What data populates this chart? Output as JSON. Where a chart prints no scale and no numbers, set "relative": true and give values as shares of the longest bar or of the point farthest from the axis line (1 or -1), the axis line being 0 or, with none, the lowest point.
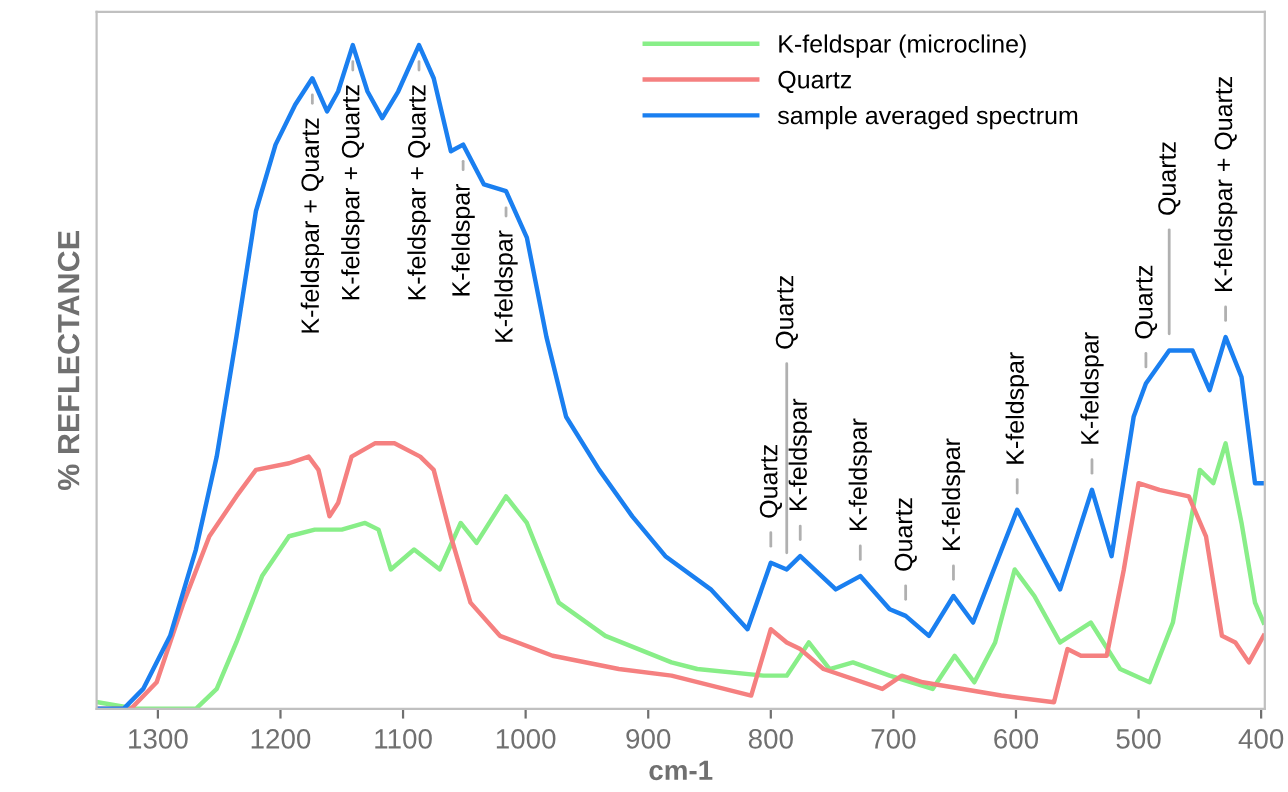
{
  "chart_data": {
    "type": "line",
    "relative": true,
    "xlabel": "cm-1",
    "ylabel": "% REFLECTANCE",
    "xlim": [
      1350,
      397
    ],
    "xticks": [
      1300,
      1200,
      1100,
      1000,
      900,
      800,
      700,
      600,
      500,
      400
    ],
    "grid": false,
    "legend": "top right",
    "marker": "none",
    "line_style": "solid",
    "series": [
      {
        "name": "K-feldspar (microcline)",
        "color": "#88ee88",
        "x": [
          1349,
          1317,
          1269,
          1252,
          1236,
          1215,
          1193,
          1172,
          1150,
          1131,
          1120,
          1110,
          1091,
          1070,
          1053,
          1040,
          1016,
          999,
          973,
          935,
          881,
          860,
          806,
          787,
          769,
          752,
          733,
          703,
          668,
          650,
          634,
          617,
          601,
          585,
          564,
          539,
          515,
          491,
          472,
          450,
          439,
          429,
          416,
          405,
          398
        ],
        "values": [
          0.01,
          0,
          0,
          0.03,
          0.1,
          0.2,
          0.26,
          0.27,
          0.27,
          0.28,
          0.27,
          0.21,
          0.24,
          0.21,
          0.28,
          0.25,
          0.32,
          0.28,
          0.16,
          0.11,
          0.07,
          0.06,
          0.05,
          0.05,
          0.1,
          0.06,
          0.07,
          0.05,
          0.03,
          0.08,
          0.04,
          0.1,
          0.21,
          0.17,
          0.1,
          0.13,
          0.06,
          0.04,
          0.13,
          0.36,
          0.34,
          0.4,
          0.28,
          0.16,
          0.13
        ]
      },
      {
        "name": "Quartz",
        "color": "#f58080",
        "x": [
          1349,
          1322,
          1301,
          1279,
          1258,
          1236,
          1220,
          1193,
          1177,
          1169,
          1160,
          1153,
          1142,
          1123,
          1107,
          1086,
          1075,
          1061,
          1045,
          1021,
          978,
          924,
          881,
          816,
          800,
          787,
          776,
          757,
          709,
          693,
          676,
          612,
          569,
          558,
          547,
          526,
          512,
          500,
          483,
          459,
          445,
          432,
          421,
          410,
          398
        ],
        "values": [
          0,
          0,
          0.04,
          0.16,
          0.26,
          0.32,
          0.36,
          0.37,
          0.38,
          0.36,
          0.29,
          0.31,
          0.38,
          0.4,
          0.4,
          0.38,
          0.36,
          0.26,
          0.16,
          0.11,
          0.08,
          0.06,
          0.05,
          0.02,
          0.12,
          0.1,
          0.09,
          0.06,
          0.03,
          0.05,
          0.04,
          0.02,
          0.01,
          0.09,
          0.08,
          0.08,
          0.21,
          0.34,
          0.33,
          0.32,
          0.26,
          0.11,
          0.1,
          0.07,
          0.11
        ]
      },
      {
        "name": "sample averaged spectrum",
        "color": "#1a7ff0",
        "x": [
          1349,
          1328,
          1312,
          1290,
          1269,
          1252,
          1236,
          1220,
          1204,
          1188,
          1174,
          1162,
          1153,
          1141,
          1129,
          1117,
          1104,
          1087,
          1075,
          1061,
          1051,
          1034,
          1016,
          999,
          983,
          967,
          940,
          913,
          886,
          849,
          819,
          800,
          787,
          776,
          747,
          727,
          703,
          690,
          671,
          651,
          635,
          599,
          564,
          538,
          522,
          504,
          494,
          475,
          456,
          442,
          429,
          416,
          405,
          398
        ],
        "values": [
          0,
          0,
          0.03,
          0.11,
          0.24,
          0.38,
          0.56,
          0.75,
          0.85,
          0.91,
          0.95,
          0.9,
          0.93,
          1.0,
          0.93,
          0.89,
          0.93,
          1.0,
          0.95,
          0.84,
          0.85,
          0.79,
          0.78,
          0.71,
          0.56,
          0.44,
          0.36,
          0.29,
          0.23,
          0.18,
          0.12,
          0.22,
          0.21,
          0.23,
          0.18,
          0.2,
          0.15,
          0.14,
          0.11,
          0.17,
          0.13,
          0.3,
          0.18,
          0.33,
          0.23,
          0.44,
          0.49,
          0.54,
          0.54,
          0.48,
          0.56,
          0.5,
          0.34,
          0.34
        ]
      }
    ],
    "annotations": [
      {
        "text": "K-feldspar + Quartz",
        "x": 1174,
        "y": 0.95
      },
      {
        "text": "K-feldspar + Quartz",
        "x": 1141,
        "y": 1.0
      },
      {
        "text": "K-feldspar + Quartz",
        "x": 1087,
        "y": 1.0
      },
      {
        "text": "K-feldspar",
        "x": 1051,
        "y": 0.85
      },
      {
        "text": "K-feldspar",
        "x": 1016,
        "y": 0.78
      },
      {
        "text": "Quartz",
        "x": 800,
        "y": 0.22
      },
      {
        "text": "K-feldspar",
        "x": 776,
        "y": 0.23
      },
      {
        "text": "Quartz",
        "x": 787,
        "y": 0.21
      },
      {
        "text": "K-feldspar",
        "x": 727,
        "y": 0.2
      },
      {
        "text": "Quartz",
        "x": 690,
        "y": 0.14
      },
      {
        "text": "K-feldspar",
        "x": 651,
        "y": 0.17
      },
      {
        "text": "K-feldspar",
        "x": 599,
        "y": 0.3
      },
      {
        "text": "K-feldspar",
        "x": 538,
        "y": 0.33
      },
      {
        "text": "Quartz",
        "x": 494,
        "y": 0.49
      },
      {
        "text": "Quartz",
        "x": 475,
        "y": 0.54
      },
      {
        "text": "K-feldspar + Quartz",
        "x": 429,
        "y": 0.56
      }
    ]
  }
}
